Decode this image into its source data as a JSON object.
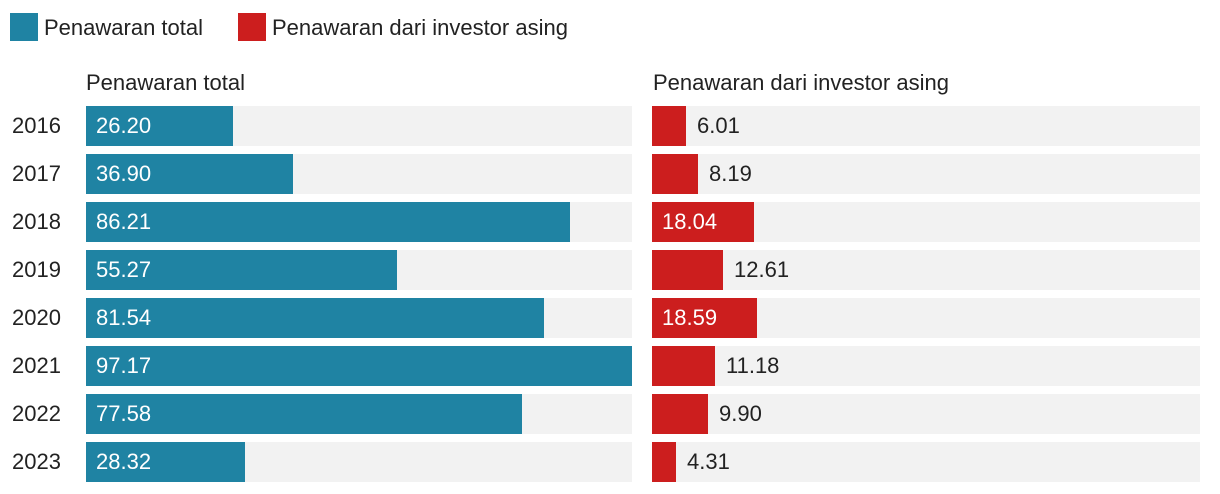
{
  "chart_data": {
    "type": "bar",
    "orientation": "horizontal",
    "categories": [
      "2016",
      "2017",
      "2018",
      "2019",
      "2020",
      "2021",
      "2022",
      "2023"
    ],
    "legend": {
      "position": "top-left"
    },
    "series": [
      {
        "name": "Penawaran total",
        "color": "#1f83a3",
        "values": [
          26.2,
          36.9,
          86.21,
          55.27,
          81.54,
          97.17,
          77.58,
          28.32
        ],
        "labels": [
          "26.20",
          "36.90",
          "86.21",
          "55.27",
          "81.54",
          "97.17",
          "77.58",
          "28.32"
        ],
        "xlim": [
          0,
          97.17
        ]
      },
      {
        "name": "Penawaran dari investor asing",
        "color": "#cc1e1e",
        "values": [
          6.01,
          8.19,
          18.04,
          12.61,
          18.59,
          11.18,
          9.9,
          4.31
        ],
        "labels": [
          "6.01",
          "8.19",
          "18.04",
          "12.61",
          "18.59",
          "11.18",
          "9.90",
          "4.31"
        ],
        "xlim": [
          0,
          97.17
        ]
      }
    ],
    "grid": false
  }
}
